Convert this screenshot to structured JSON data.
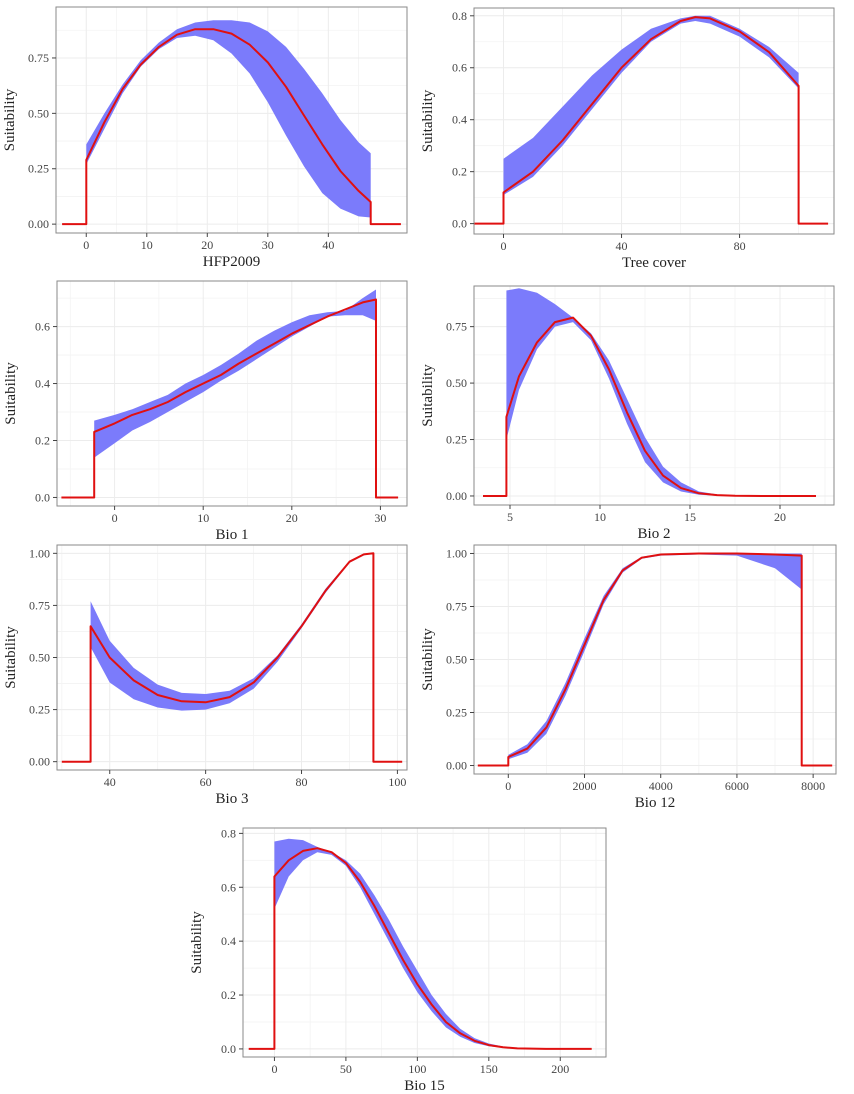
{
  "figure": {
    "colors": {
      "band": "#7b7bfb",
      "line": "#e01010",
      "grid": "#ececec",
      "frame": "#8a8a8a",
      "text": "#222222",
      "tick": "#444444"
    }
  },
  "chart_data": [
    {
      "type": "line",
      "title": "",
      "xlabel": "HFP2009",
      "ylabel": "Suitability",
      "xlim": [
        -5,
        53
      ],
      "ylim": [
        -0.04,
        0.98
      ],
      "xticks": [
        0,
        10,
        20,
        30,
        40
      ],
      "yticks": [
        0,
        0.25,
        0.5,
        0.75
      ],
      "ytick_labels": [
        "0.00",
        "0.25",
        "0.50",
        "0.75"
      ],
      "grid": true,
      "series": [
        {
          "name": "mean",
          "x": [
            -4,
            0,
            0,
            3,
            6,
            9,
            12,
            15,
            18,
            21,
            24,
            27,
            30,
            33,
            36,
            39,
            42,
            45,
            47,
            47,
            52
          ],
          "values": [
            0,
            0,
            0.29,
            0.46,
            0.61,
            0.72,
            0.8,
            0.855,
            0.88,
            0.88,
            0.86,
            0.81,
            0.73,
            0.62,
            0.49,
            0.36,
            0.24,
            0.15,
            0.1,
            0,
            0
          ]
        },
        {
          "name": "band_upper",
          "x": [
            0,
            3,
            6,
            9,
            12,
            15,
            18,
            21,
            24,
            27,
            30,
            33,
            36,
            39,
            42,
            45,
            47
          ],
          "values": [
            0.36,
            0.5,
            0.63,
            0.74,
            0.82,
            0.88,
            0.91,
            0.92,
            0.92,
            0.91,
            0.87,
            0.8,
            0.7,
            0.59,
            0.47,
            0.37,
            0.32
          ]
        },
        {
          "name": "band_lower",
          "x": [
            0,
            3,
            6,
            9,
            12,
            15,
            18,
            21,
            24,
            27,
            30,
            33,
            36,
            39,
            42,
            45,
            47
          ],
          "values": [
            0.27,
            0.43,
            0.59,
            0.71,
            0.79,
            0.84,
            0.85,
            0.83,
            0.77,
            0.68,
            0.55,
            0.4,
            0.26,
            0.14,
            0.07,
            0.035,
            0.03
          ]
        }
      ]
    },
    {
      "type": "line",
      "title": "",
      "xlabel": "Tree cover",
      "ylabel": "Suitability",
      "xlim": [
        -10,
        112
      ],
      "ylim": [
        -0.04,
        0.83
      ],
      "xticks": [
        0,
        40,
        80
      ],
      "yticks": [
        0,
        0.2,
        0.4,
        0.6,
        0.8
      ],
      "ytick_labels": [
        "0.0",
        "0.2",
        "0.4",
        "0.6",
        "0.8"
      ],
      "grid": true,
      "series": [
        {
          "name": "mean",
          "x": [
            -10,
            0,
            0,
            10,
            20,
            30,
            40,
            50,
            60,
            65,
            70,
            80,
            90,
            100,
            100,
            110
          ],
          "values": [
            0,
            0,
            0.12,
            0.2,
            0.32,
            0.46,
            0.6,
            0.71,
            0.78,
            0.795,
            0.79,
            0.74,
            0.66,
            0.53,
            0,
            0
          ]
        },
        {
          "name": "band_upper",
          "x": [
            0,
            10,
            20,
            30,
            40,
            50,
            60,
            65,
            70,
            80,
            90,
            100
          ],
          "values": [
            0.25,
            0.33,
            0.45,
            0.57,
            0.67,
            0.75,
            0.79,
            0.8,
            0.8,
            0.75,
            0.68,
            0.58
          ]
        },
        {
          "name": "band_lower",
          "x": [
            0,
            10,
            20,
            30,
            40,
            50,
            60,
            65,
            70,
            80,
            90,
            100
          ],
          "values": [
            0.11,
            0.18,
            0.3,
            0.44,
            0.58,
            0.7,
            0.77,
            0.78,
            0.77,
            0.72,
            0.64,
            0.52
          ]
        }
      ]
    },
    {
      "type": "line",
      "title": "",
      "xlabel": "Bio 1",
      "ylabel": "Suitability",
      "xlim": [
        -6.5,
        33
      ],
      "ylim": [
        -0.03,
        0.76
      ],
      "xticks": [
        0,
        10,
        20,
        30
      ],
      "yticks": [
        0,
        0.2,
        0.4,
        0.6
      ],
      "ytick_labels": [
        "0.0",
        "0.2",
        "0.4",
        "0.6"
      ],
      "grid": true,
      "series": [
        {
          "name": "mean",
          "x": [
            -6,
            -2.3,
            -2.3,
            0,
            2,
            4,
            6,
            8,
            10,
            12,
            14,
            16,
            18,
            20,
            22,
            24,
            26,
            28,
            29.5,
            29.5,
            32
          ],
          "values": [
            0,
            0,
            0.23,
            0.26,
            0.29,
            0.31,
            0.335,
            0.37,
            0.4,
            0.43,
            0.47,
            0.505,
            0.54,
            0.575,
            0.605,
            0.635,
            0.66,
            0.685,
            0.695,
            0,
            0
          ]
        },
        {
          "name": "band_upper",
          "x": [
            -2.3,
            0,
            2,
            4,
            6,
            8,
            10,
            12,
            14,
            16,
            18,
            20,
            22,
            24,
            26,
            28,
            29.5
          ],
          "values": [
            0.27,
            0.29,
            0.31,
            0.335,
            0.36,
            0.4,
            0.43,
            0.465,
            0.505,
            0.55,
            0.585,
            0.615,
            0.64,
            0.65,
            0.655,
            0.7,
            0.73
          ]
        },
        {
          "name": "band_lower",
          "x": [
            -2.3,
            0,
            2,
            4,
            6,
            8,
            10,
            12,
            14,
            16,
            18,
            20,
            22,
            24,
            26,
            28,
            29.5
          ],
          "values": [
            0.14,
            0.19,
            0.235,
            0.265,
            0.3,
            0.335,
            0.37,
            0.41,
            0.445,
            0.485,
            0.525,
            0.565,
            0.6,
            0.635,
            0.64,
            0.64,
            0.62
          ]
        }
      ]
    },
    {
      "type": "line",
      "title": "",
      "xlabel": "Bio 2",
      "ylabel": "Suitability",
      "xlim": [
        3,
        23
      ],
      "ylim": [
        -0.04,
        0.93
      ],
      "xticks": [
        5,
        10,
        15,
        20
      ],
      "yticks": [
        0,
        0.25,
        0.5,
        0.75
      ],
      "ytick_labels": [
        "0.00",
        "0.25",
        "0.50",
        "0.75"
      ],
      "grid": true,
      "series": [
        {
          "name": "mean",
          "x": [
            3.5,
            4.8,
            4.8,
            5.5,
            6.5,
            7.5,
            8.5,
            9.5,
            10.5,
            11.5,
            12.5,
            13.5,
            14.5,
            15.5,
            16.5,
            17.5,
            19,
            22
          ],
          "values": [
            0,
            0,
            0.35,
            0.53,
            0.68,
            0.77,
            0.79,
            0.71,
            0.56,
            0.37,
            0.2,
            0.09,
            0.035,
            0.012,
            0.004,
            0.001,
            0,
            0
          ]
        },
        {
          "name": "band_upper",
          "x": [
            4.8,
            5.5,
            6.5,
            7.5,
            8.5,
            9.5,
            10.5,
            11.5,
            12.5,
            13.5,
            14.5,
            15.5,
            16.5,
            17.5
          ],
          "values": [
            0.91,
            0.92,
            0.9,
            0.85,
            0.79,
            0.72,
            0.6,
            0.43,
            0.26,
            0.13,
            0.06,
            0.02,
            0.007,
            0.002
          ]
        },
        {
          "name": "band_lower",
          "x": [
            4.8,
            5.5,
            6.5,
            7.5,
            8.5,
            9.5,
            10.5,
            11.5,
            12.5,
            13.5,
            14.5,
            15.5,
            16.5,
            17.5
          ],
          "values": [
            0.25,
            0.47,
            0.65,
            0.75,
            0.77,
            0.69,
            0.52,
            0.32,
            0.15,
            0.06,
            0.02,
            0.005,
            0.001,
            0
          ]
        }
      ]
    },
    {
      "type": "line",
      "title": "",
      "xlabel": "Bio 3",
      "ylabel": "Suitability",
      "xlim": [
        29,
        102
      ],
      "ylim": [
        -0.04,
        1.04
      ],
      "xticks": [
        40,
        60,
        80,
        100
      ],
      "yticks": [
        0,
        0.25,
        0.5,
        0.75,
        1
      ],
      "ytick_labels": [
        "0.00",
        "0.25",
        "0.50",
        "0.75",
        "1.00"
      ],
      "grid": true,
      "series": [
        {
          "name": "mean",
          "x": [
            30,
            36,
            36,
            40,
            45,
            50,
            55,
            60,
            65,
            70,
            75,
            80,
            85,
            90,
            93,
            95,
            95,
            101
          ],
          "values": [
            0,
            0,
            0.65,
            0.5,
            0.39,
            0.32,
            0.29,
            0.285,
            0.31,
            0.38,
            0.5,
            0.65,
            0.82,
            0.96,
            0.995,
            1.0,
            0,
            0
          ]
        },
        {
          "name": "band_upper",
          "x": [
            36,
            40,
            45,
            50,
            55,
            60,
            65,
            70,
            75,
            80,
            85,
            90,
            93,
            95
          ],
          "values": [
            0.77,
            0.58,
            0.45,
            0.37,
            0.33,
            0.325,
            0.34,
            0.4,
            0.51,
            0.66,
            0.83,
            0.965,
            0.995,
            1.0
          ]
        },
        {
          "name": "band_lower",
          "x": [
            36,
            40,
            45,
            50,
            55,
            60,
            65,
            70,
            75,
            80,
            85,
            90,
            93,
            95
          ],
          "values": [
            0.55,
            0.38,
            0.3,
            0.26,
            0.245,
            0.25,
            0.28,
            0.35,
            0.48,
            0.64,
            0.81,
            0.955,
            0.99,
            1.0
          ]
        }
      ]
    },
    {
      "type": "line",
      "title": "",
      "xlabel": "Bio 12",
      "ylabel": "Suitability",
      "xlim": [
        -900,
        8600
      ],
      "ylim": [
        -0.04,
        1.04
      ],
      "xticks": [
        0,
        2000,
        4000,
        6000,
        8000
      ],
      "yticks": [
        0,
        0.25,
        0.5,
        0.75,
        1
      ],
      "ytick_labels": [
        "0.00",
        "0.25",
        "0.50",
        "0.75",
        "1.00"
      ],
      "grid": true,
      "series": [
        {
          "name": "mean",
          "x": [
            -800,
            0,
            0,
            500,
            1000,
            1500,
            2000,
            2500,
            3000,
            3500,
            4000,
            5000,
            6000,
            7000,
            7700,
            7700,
            8500
          ],
          "values": [
            0,
            0,
            0.04,
            0.08,
            0.18,
            0.36,
            0.57,
            0.78,
            0.92,
            0.98,
            0.995,
            1.0,
            1.0,
            0.995,
            0.99,
            0,
            0
          ]
        },
        {
          "name": "band_upper",
          "x": [
            0,
            500,
            1000,
            1500,
            2000,
            2500,
            3000,
            3500,
            4000,
            5000,
            6000,
            7000,
            7700
          ],
          "values": [
            0.05,
            0.1,
            0.21,
            0.39,
            0.6,
            0.8,
            0.93,
            0.985,
            0.998,
            1.0,
            1.0,
            1.0,
            1.0
          ]
        },
        {
          "name": "band_lower",
          "x": [
            0,
            500,
            1000,
            1500,
            2000,
            2500,
            3000,
            3500,
            4000,
            5000,
            6000,
            7000,
            7700
          ],
          "values": [
            0.03,
            0.06,
            0.15,
            0.33,
            0.54,
            0.76,
            0.91,
            0.975,
            0.99,
            0.995,
            0.99,
            0.93,
            0.83
          ]
        }
      ]
    },
    {
      "type": "line",
      "title": "",
      "xlabel": "Bio 15",
      "ylabel": "Suitability",
      "xlim": [
        -22,
        232
      ],
      "ylim": [
        -0.03,
        0.82
      ],
      "xticks": [
        0,
        50,
        100,
        150,
        200
      ],
      "yticks": [
        0,
        0.2,
        0.4,
        0.6,
        0.8
      ],
      "ytick_labels": [
        "0.0",
        "0.2",
        "0.4",
        "0.6",
        "0.8"
      ],
      "grid": true,
      "series": [
        {
          "name": "mean",
          "x": [
            -18,
            0,
            0,
            10,
            20,
            30,
            40,
            50,
            60,
            70,
            80,
            90,
            100,
            110,
            120,
            130,
            140,
            150,
            160,
            170,
            180,
            190,
            222
          ],
          "values": [
            0,
            0,
            0.64,
            0.7,
            0.735,
            0.745,
            0.73,
            0.69,
            0.62,
            0.53,
            0.43,
            0.33,
            0.24,
            0.165,
            0.1,
            0.058,
            0.03,
            0.014,
            0.006,
            0.002,
            0.001,
            0,
            0
          ]
        },
        {
          "name": "band_upper",
          "x": [
            0,
            10,
            20,
            30,
            40,
            50,
            60,
            70,
            80,
            90,
            100,
            110,
            120,
            130,
            140,
            150,
            160,
            170,
            180
          ],
          "values": [
            0.77,
            0.78,
            0.775,
            0.75,
            0.73,
            0.7,
            0.65,
            0.57,
            0.48,
            0.38,
            0.29,
            0.2,
            0.13,
            0.075,
            0.04,
            0.02,
            0.009,
            0.003,
            0.001
          ]
        },
        {
          "name": "band_lower",
          "x": [
            0,
            10,
            20,
            30,
            40,
            50,
            60,
            70,
            80,
            90,
            100,
            110,
            120,
            130,
            140,
            150,
            160,
            170,
            180
          ],
          "values": [
            0.52,
            0.64,
            0.7,
            0.73,
            0.72,
            0.68,
            0.6,
            0.5,
            0.4,
            0.3,
            0.21,
            0.14,
            0.08,
            0.045,
            0.022,
            0.01,
            0.004,
            0.001,
            0
          ]
        }
      ]
    }
  ]
}
